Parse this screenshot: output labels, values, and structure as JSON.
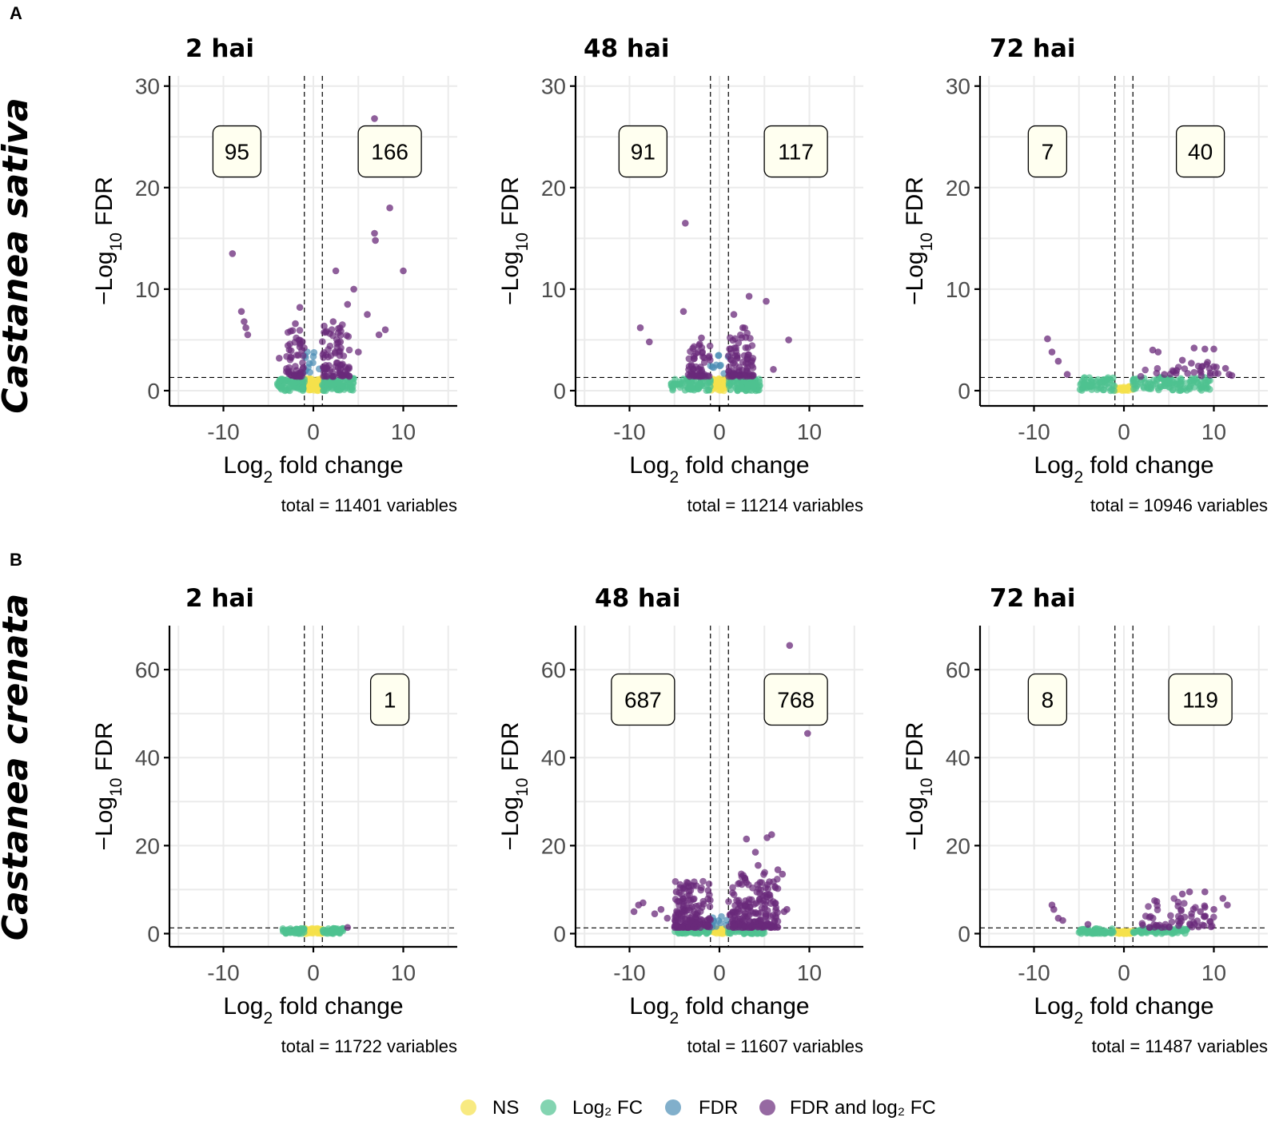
{
  "figure": {
    "rows": [
      {
        "label": "A",
        "species": "Castanea sativa"
      },
      {
        "label": "B",
        "species": "Castanea crenata"
      }
    ]
  },
  "legend": {
    "items": [
      {
        "label": "NS",
        "color": "#f5e14b"
      },
      {
        "label": "Log₂ FC",
        "color": "#4fc290"
      },
      {
        "label": "FDR",
        "color": "#4b8db5"
      },
      {
        "label": "FDR and log₂ FC",
        "color": "#6a2a7a"
      }
    ]
  },
  "chart_data": [
    {
      "type": "scatter",
      "row": 0,
      "col": 0,
      "title": "2 hai",
      "xlabel": "Log₂ fold change",
      "ylabel": "−Log₁₀ FDR",
      "xlim": [
        -16,
        16
      ],
      "ylim": [
        -1.5,
        31
      ],
      "yticks": [
        0,
        10,
        20,
        30
      ],
      "xticks": [
        -10,
        0,
        10
      ],
      "fc_cutoff": 1,
      "fdr_cutoff": 1.3,
      "down_count": "95",
      "up_count": "166",
      "caption": "total = 11401 variables",
      "highlight": [
        [
          -9,
          13.5
        ],
        [
          -8,
          7.8
        ],
        [
          -7.7,
          6.8
        ],
        [
          -7.5,
          6.2
        ],
        [
          -7.3,
          5.5
        ],
        [
          6.8,
          26.8
        ],
        [
          7.1,
          25.8
        ],
        [
          8.5,
          18
        ],
        [
          6.8,
          15.5
        ],
        [
          6.9,
          14.8
        ],
        [
          10,
          11.8
        ],
        [
          2.5,
          11.8
        ],
        [
          4.5,
          10
        ],
        [
          3.8,
          8.5
        ],
        [
          6,
          7.5
        ],
        [
          8,
          6
        ],
        [
          7.3,
          5.5
        ],
        [
          5,
          3.8
        ],
        [
          -1.5,
          8.2
        ],
        [
          -2,
          6.6
        ],
        [
          -3.8,
          3.2
        ],
        [
          2.2,
          6.8
        ],
        [
          3,
          4.8
        ]
      ],
      "clouds": [
        {
          "cls": "ns",
          "n": 60,
          "xmin": -1,
          "xmax": 1,
          "ymin": 0,
          "ymax": 1.2
        },
        {
          "cls": "fc",
          "n": 75,
          "xmin": -4,
          "xmax": -1,
          "ymin": 0,
          "ymax": 1.2
        },
        {
          "cls": "fc",
          "n": 85,
          "xmin": 1,
          "xmax": 4.5,
          "ymin": 0,
          "ymax": 1.2
        },
        {
          "cls": "fdr",
          "n": 12,
          "xmin": -1,
          "xmax": 1,
          "ymin": 1.4,
          "ymax": 4
        },
        {
          "cls": "both",
          "n": 55,
          "xmin": -3,
          "xmax": -1,
          "ymin": 1.4,
          "ymax": 6,
          "bias": 2.2
        },
        {
          "cls": "both",
          "n": 80,
          "xmin": 1,
          "xmax": 4,
          "ymin": 1.4,
          "ymax": 6.5,
          "bias": 2.2
        }
      ]
    },
    {
      "type": "scatter",
      "row": 0,
      "col": 1,
      "title": "48 hai",
      "xlabel": "Log₂ fold change",
      "ylabel": "−Log₁₀ FDR",
      "xlim": [
        -16,
        16
      ],
      "ylim": [
        -1.5,
        31
      ],
      "yticks": [
        0,
        10,
        20,
        30
      ],
      "xticks": [
        -10,
        0,
        10
      ],
      "fc_cutoff": 1,
      "fdr_cutoff": 1.3,
      "down_count": "91",
      "up_count": "117",
      "caption": "total = 11214 variables",
      "highlight": [
        [
          -3.8,
          16.5
        ],
        [
          -4,
          7.8
        ],
        [
          -8.8,
          6.2
        ],
        [
          -7.8,
          4.8
        ],
        [
          -2,
          5.2
        ],
        [
          3.3,
          9.3
        ],
        [
          5.2,
          8.8
        ],
        [
          1.6,
          7.5
        ],
        [
          2.6,
          6.2
        ],
        [
          7.7,
          5
        ],
        [
          6,
          2.1
        ],
        [
          -2.2,
          4.6
        ]
      ],
      "clouds": [
        {
          "cls": "ns",
          "n": 60,
          "xmin": -1,
          "xmax": 1,
          "ymin": 0,
          "ymax": 1.2
        },
        {
          "cls": "fc",
          "n": 70,
          "xmin": -5.5,
          "xmax": -1,
          "ymin": 0,
          "ymax": 1.2
        },
        {
          "cls": "fc",
          "n": 85,
          "xmin": 1,
          "xmax": 4.5,
          "ymin": 0,
          "ymax": 1.2
        },
        {
          "cls": "fdr",
          "n": 10,
          "xmin": -1,
          "xmax": 1,
          "ymin": 1.4,
          "ymax": 3.5
        },
        {
          "cls": "both",
          "n": 55,
          "xmin": -3.5,
          "xmax": -1,
          "ymin": 1.4,
          "ymax": 4.5,
          "bias": 2.2
        },
        {
          "cls": "both",
          "n": 80,
          "xmin": 1,
          "xmax": 3.8,
          "ymin": 1.4,
          "ymax": 6.5,
          "bias": 2.2
        }
      ]
    },
    {
      "type": "scatter",
      "row": 0,
      "col": 2,
      "title": "72 hai",
      "xlabel": "Log₂ fold change",
      "ylabel": "−Log₁₀ FDR",
      "xlim": [
        -16,
        16
      ],
      "ylim": [
        -1.5,
        31
      ],
      "yticks": [
        0,
        10,
        20,
        30
      ],
      "xticks": [
        -10,
        0,
        10
      ],
      "fc_cutoff": 1,
      "fdr_cutoff": 1.3,
      "down_count": "7",
      "up_count": "40",
      "caption": "total = 10946 variables",
      "highlight": [
        [
          -8.5,
          5.1
        ],
        [
          -8,
          3.8
        ],
        [
          -7.3,
          2.9
        ],
        [
          -6.3,
          1.6
        ],
        [
          3.2,
          4
        ],
        [
          3.8,
          3.8
        ],
        [
          7.8,
          4.2
        ],
        [
          9,
          4.1
        ],
        [
          10,
          4.1
        ],
        [
          6.5,
          3
        ],
        [
          7.5,
          2.7
        ],
        [
          9.3,
          2.8
        ],
        [
          11.3,
          2.2
        ],
        [
          11.7,
          1.6
        ],
        [
          12,
          1.5
        ],
        [
          5.8,
          1.7
        ],
        [
          4.5,
          1.6
        ],
        [
          8.5,
          2
        ]
      ],
      "clouds": [
        {
          "cls": "ns",
          "n": 40,
          "xmin": -1,
          "xmax": 1,
          "ymin": 0,
          "ymax": 0.4
        },
        {
          "cls": "fc",
          "n": 60,
          "xmin": -5,
          "xmax": -1,
          "ymin": 0,
          "ymax": 1.3
        },
        {
          "cls": "fc",
          "n": 110,
          "xmin": 1,
          "xmax": 10,
          "ymin": 0,
          "ymax": 1.3
        },
        {
          "cls": "both",
          "n": 25,
          "xmin": 1.5,
          "xmax": 11,
          "ymin": 1.4,
          "ymax": 2.6
        }
      ]
    },
    {
      "type": "scatter",
      "row": 1,
      "col": 0,
      "title": "2 hai",
      "xlabel": "Log₂ fold change",
      "ylabel": "−Log₁₀ FDR",
      "xlim": [
        -16,
        16
      ],
      "ylim": [
        -3,
        70
      ],
      "yticks": [
        0,
        20,
        40,
        60
      ],
      "xticks": [
        -10,
        0,
        10
      ],
      "fc_cutoff": 1,
      "fdr_cutoff": 1.3,
      "down_count": "",
      "up_count": "1",
      "caption": "total = 11722 variables",
      "highlight": [
        [
          3.8,
          1.4
        ]
      ],
      "clouds": [
        {
          "cls": "ns",
          "n": 50,
          "xmin": -1,
          "xmax": 1,
          "ymin": 0,
          "ymax": 1.2
        },
        {
          "cls": "fc",
          "n": 45,
          "xmin": -3.5,
          "xmax": -1,
          "ymin": 0,
          "ymax": 1.2
        },
        {
          "cls": "fc",
          "n": 45,
          "xmin": 1,
          "xmax": 3.5,
          "ymin": 0,
          "ymax": 1.2
        }
      ]
    },
    {
      "type": "scatter",
      "row": 1,
      "col": 1,
      "title": "48 hai",
      "xlabel": "Log₂ fold change",
      "ylabel": "−Log₁₀ FDR",
      "xlim": [
        -16,
        16
      ],
      "ylim": [
        -3,
        70
      ],
      "yticks": [
        0,
        20,
        40,
        60
      ],
      "xticks": [
        -10,
        0,
        10
      ],
      "fc_cutoff": 1,
      "fdr_cutoff": 1.3,
      "down_count": "687",
      "up_count": "768",
      "caption": "total = 11607 variables",
      "highlight": [
        [
          7.8,
          65.5
        ],
        [
          9.8,
          45.5
        ],
        [
          3,
          21.5
        ],
        [
          5.8,
          22.5
        ],
        [
          5.3,
          21.8
        ],
        [
          4,
          18.5
        ],
        [
          4.3,
          15.5
        ],
        [
          6.5,
          14.5
        ],
        [
          7,
          13.5
        ],
        [
          -3.5,
          11.5
        ],
        [
          -4.8,
          9.5
        ],
        [
          -8.5,
          7
        ],
        [
          -9,
          6.5
        ],
        [
          -9.5,
          5
        ],
        [
          -6.5,
          5.5
        ],
        [
          -5.8,
          3.5
        ],
        [
          -7.2,
          4.5
        ],
        [
          7.5,
          5.5
        ],
        [
          7.2,
          5
        ]
      ],
      "clouds": [
        {
          "cls": "ns",
          "n": 50,
          "xmin": -1,
          "xmax": 1,
          "ymin": 0,
          "ymax": 1.2
        },
        {
          "cls": "fc",
          "n": 60,
          "xmin": -5,
          "xmax": -1,
          "ymin": 0,
          "ymax": 1.2
        },
        {
          "cls": "fc",
          "n": 60,
          "xmin": 1,
          "xmax": 5,
          "ymin": 0,
          "ymax": 1.2
        },
        {
          "cls": "fdr",
          "n": 12,
          "xmin": -1,
          "xmax": 1,
          "ymin": 1.4,
          "ymax": 4
        },
        {
          "cls": "both",
          "n": 160,
          "xmin": -5,
          "xmax": -1,
          "ymin": 1.4,
          "ymax": 12,
          "bias": 2.2
        },
        {
          "cls": "both",
          "n": 190,
          "xmin": 1,
          "xmax": 6.5,
          "ymin": 1.4,
          "ymax": 14,
          "bias": 2.2
        }
      ]
    },
    {
      "type": "scatter",
      "row": 1,
      "col": 2,
      "title": "72 hai",
      "xlabel": "Log₂ fold change",
      "ylabel": "−Log₁₀ FDR",
      "xlim": [
        -16,
        16
      ],
      "ylim": [
        -3,
        70
      ],
      "yticks": [
        0,
        20,
        40,
        60
      ],
      "xticks": [
        -10,
        0,
        10
      ],
      "fc_cutoff": 1,
      "fdr_cutoff": 1.3,
      "down_count": "8",
      "up_count": "119",
      "caption": "total = 11487 variables",
      "highlight": [
        [
          -8,
          6.5
        ],
        [
          -7.8,
          5.5
        ],
        [
          -7.3,
          3.5
        ],
        [
          -6.8,
          3
        ],
        [
          -4,
          2.1
        ],
        [
          7.3,
          9.5
        ],
        [
          9,
          9.5
        ],
        [
          6.5,
          9
        ],
        [
          11,
          8
        ],
        [
          11.5,
          6.5
        ],
        [
          10,
          5.5
        ],
        [
          9,
          6
        ],
        [
          8.5,
          5
        ]
      ],
      "clouds": [
        {
          "cls": "ns",
          "n": 40,
          "xmin": -1,
          "xmax": 1,
          "ymin": 0,
          "ymax": 0.6
        },
        {
          "cls": "fc",
          "n": 60,
          "xmin": -5,
          "xmax": -1,
          "ymin": 0,
          "ymax": 1.2
        },
        {
          "cls": "fc",
          "n": 80,
          "xmin": 1,
          "xmax": 7,
          "ymin": 0,
          "ymax": 1.2
        },
        {
          "cls": "both",
          "n": 60,
          "xmin": 2,
          "xmax": 10,
          "ymin": 1.4,
          "ymax": 8,
          "bias": 1.8
        }
      ]
    }
  ]
}
